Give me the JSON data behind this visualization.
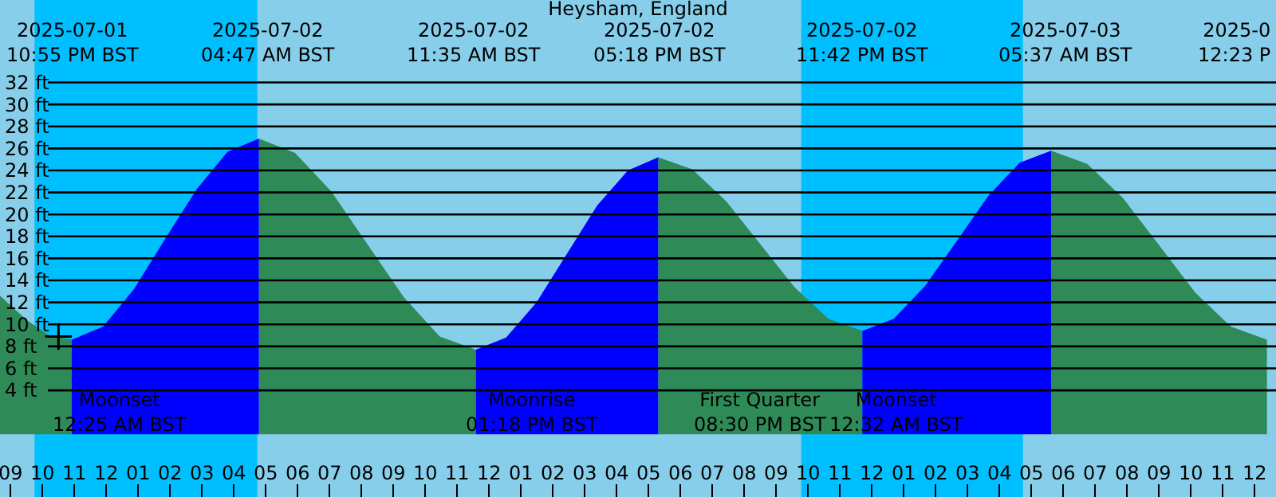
{
  "chart_data": {
    "type": "area",
    "title": "Heysham, England",
    "x": [
      "2025-07-01T20:40",
      "2025-07-01T21:30",
      "2025-07-01T22:12",
      "2025-07-01T22:55",
      "2025-07-01T23:54",
      "2025-07-02T00:52",
      "2025-07-02T01:51",
      "2025-07-02T02:50",
      "2025-07-02T03:48",
      "2025-07-02T04:47",
      "2025-07-02T05:55",
      "2025-07-02T07:03",
      "2025-07-02T08:11",
      "2025-07-02T09:19",
      "2025-07-02T10:27",
      "2025-07-02T11:35",
      "2025-07-02T12:32",
      "2025-07-02T13:29",
      "2025-07-02T14:26",
      "2025-07-02T15:23",
      "2025-07-02T16:21",
      "2025-07-02T17:18",
      "2025-07-02T18:22",
      "2025-07-02T19:26",
      "2025-07-02T20:30",
      "2025-07-02T21:34",
      "2025-07-02T22:38",
      "2025-07-02T23:42",
      "2025-07-03T00:41",
      "2025-07-03T01:40",
      "2025-07-03T02:40",
      "2025-07-03T03:39",
      "2025-07-03T04:38",
      "2025-07-03T05:37",
      "2025-07-03T06:45",
      "2025-07-03T07:52",
      "2025-07-03T09:00",
      "2025-07-03T10:08",
      "2025-07-03T11:15",
      "2025-07-03T12:23"
    ],
    "series": [
      {
        "color": "#2e8b57",
        "values": [
          12.6,
          10.4,
          9.0,
          8.6,
          null,
          null,
          null,
          null,
          null,
          26.9,
          25.6,
          22.1,
          17.3,
          12.5,
          8.9,
          7.7,
          null,
          null,
          null,
          null,
          null,
          25.2,
          24.1,
          21.2,
          17.3,
          13.4,
          10.5,
          9.4,
          null,
          null,
          null,
          null,
          null,
          25.8,
          24.6,
          21.5,
          17.2,
          12.9,
          9.8,
          8.6
        ]
      },
      {
        "color": "#0000ff",
        "values": [
          null,
          null,
          null,
          8.6,
          9.8,
          13.2,
          17.8,
          22.3,
          25.7,
          26.9,
          null,
          null,
          null,
          null,
          null,
          7.7,
          8.8,
          12.0,
          16.4,
          20.8,
          24.0,
          25.2,
          null,
          null,
          null,
          null,
          null,
          9.4,
          10.5,
          13.5,
          17.6,
          21.7,
          24.7,
          25.8,
          null,
          null,
          null,
          null,
          null,
          null
        ]
      },
      {
        "type": "scatter",
        "color": "#000000",
        "marker": "cross",
        "x": [
          "2025-07-01T22:30"
        ],
        "values": [
          8.9
        ]
      }
    ],
    "xlim": [
      "2025-07-01T20:40",
      "2025-07-03T12:40"
    ],
    "xticks": [
      {
        "value": "2025-07-01T21:00",
        "label": "09"
      },
      {
        "value": "2025-07-01T22:00",
        "label": "10"
      },
      {
        "value": "2025-07-01T23:00",
        "label": "11"
      },
      {
        "value": "2025-07-02T00:00",
        "label": "12"
      },
      {
        "value": "2025-07-02T01:00",
        "label": "01"
      },
      {
        "value": "2025-07-02T02:00",
        "label": "02"
      },
      {
        "value": "2025-07-02T03:00",
        "label": "03"
      },
      {
        "value": "2025-07-02T04:00",
        "label": "04"
      },
      {
        "value": "2025-07-02T05:00",
        "label": "05"
      },
      {
        "value": "2025-07-02T06:00",
        "label": "06"
      },
      {
        "value": "2025-07-02T07:00",
        "label": "07"
      },
      {
        "value": "2025-07-02T08:00",
        "label": "08"
      },
      {
        "value": "2025-07-02T09:00",
        "label": "09"
      },
      {
        "value": "2025-07-02T10:00",
        "label": "10"
      },
      {
        "value": "2025-07-02T11:00",
        "label": "11"
      },
      {
        "value": "2025-07-02T12:00",
        "label": "12"
      },
      {
        "value": "2025-07-02T13:00",
        "label": "01"
      },
      {
        "value": "2025-07-02T14:00",
        "label": "02"
      },
      {
        "value": "2025-07-02T15:00",
        "label": "03"
      },
      {
        "value": "2025-07-02T16:00",
        "label": "04"
      },
      {
        "value": "2025-07-02T17:00",
        "label": "05"
      },
      {
        "value": "2025-07-02T18:00",
        "label": "06"
      },
      {
        "value": "2025-07-02T19:00",
        "label": "07"
      },
      {
        "value": "2025-07-02T20:00",
        "label": "08"
      },
      {
        "value": "2025-07-02T21:00",
        "label": "09"
      },
      {
        "value": "2025-07-02T22:00",
        "label": "10"
      },
      {
        "value": "2025-07-02T23:00",
        "label": "11"
      },
      {
        "value": "2025-07-03T00:00",
        "label": "12"
      },
      {
        "value": "2025-07-03T01:00",
        "label": "01"
      },
      {
        "value": "2025-07-03T02:00",
        "label": "02"
      },
      {
        "value": "2025-07-03T03:00",
        "label": "03"
      },
      {
        "value": "2025-07-03T04:00",
        "label": "04"
      },
      {
        "value": "2025-07-03T05:00",
        "label": "05"
      },
      {
        "value": "2025-07-03T06:00",
        "label": "06"
      },
      {
        "value": "2025-07-03T07:00",
        "label": "07"
      },
      {
        "value": "2025-07-03T08:00",
        "label": "08"
      },
      {
        "value": "2025-07-03T09:00",
        "label": "09"
      },
      {
        "value": "2025-07-03T10:00",
        "label": "10"
      },
      {
        "value": "2025-07-03T11:00",
        "label": "11"
      },
      {
        "value": "2025-07-03T12:00",
        "label": "12"
      }
    ],
    "ylim": [
      -5.7,
      39.5
    ],
    "yticks": [
      {
        "value": 4,
        "label": "4 ft"
      },
      {
        "value": 6,
        "label": "6 ft"
      },
      {
        "value": 8,
        "label": "8 ft"
      },
      {
        "value": 10,
        "label": "10 ft"
      },
      {
        "value": 12,
        "label": "12 ft"
      },
      {
        "value": 14,
        "label": "14 ft"
      },
      {
        "value": 16,
        "label": "16 ft"
      },
      {
        "value": 18,
        "label": "18 ft"
      },
      {
        "value": 20,
        "label": "20 ft"
      },
      {
        "value": 22,
        "label": "22 ft"
      },
      {
        "value": 24,
        "label": "24 ft"
      },
      {
        "value": 26,
        "label": "26 ft"
      },
      {
        "value": 28,
        "label": "28 ft"
      },
      {
        "value": 30,
        "label": "30 ft"
      },
      {
        "value": 32,
        "label": "32 ft"
      }
    ],
    "grid": "y",
    "bands": [
      {
        "axis": "x",
        "from": "2025-07-01T21:45",
        "to": "2025-07-02T04:44",
        "color": "#00bfff"
      },
      {
        "axis": "x",
        "from": "2025-07-02T21:47",
        "to": "2025-07-03T04:44",
        "color": "#00bfff"
      }
    ],
    "annotations": [
      "2025-07-01\n10:55 PM BST",
      "2025-07-02\n04:47 AM BST",
      "2025-07-02\n11:35 AM BST",
      "2025-07-02\n05:18 PM BST",
      "2025-07-02\n11:42 PM BST",
      "2025-07-03\n05:37 AM BST",
      "2025-0\n12:23 P",
      "Moonset\n12:25 AM BST",
      "Moonrise\n01:18 PM BST",
      "First Quarter\n08:30 PM BST",
      "Moonset\n12:32 AM BST"
    ]
  }
}
